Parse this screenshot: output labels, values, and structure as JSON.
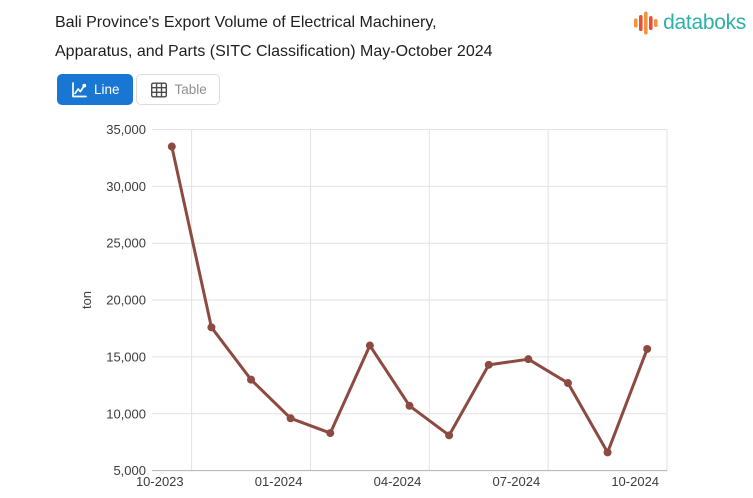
{
  "header": {
    "title_line1": "Bali Province's Export Volume of Electrical Machinery,",
    "title_line2": "Apparatus, and Parts (SITC Classification) May-October 2024",
    "brand": "databoks"
  },
  "toolbar": {
    "line_button": "Line",
    "table_button": "Table"
  },
  "colors": {
    "accent_blue": "#1976d2",
    "brand_teal": "#2eafa9",
    "logo_orange": "#f6923d",
    "logo_red": "#e94f35",
    "line": "#8c4a41",
    "gridline": "#e2e2e2",
    "axis_line": "#b0b0b0",
    "tick_text": "#3c3c3c"
  },
  "chart_data": {
    "type": "line",
    "title": "Bali Province's Export Volume of Electrical Machinery, Apparatus, and Parts (SITC Classification) May-October 2024",
    "xlabel": "",
    "ylabel": "ton",
    "categories": [
      "10-2023",
      "11-2023",
      "12-2023",
      "01-2024",
      "02-2024",
      "03-2024",
      "04-2024",
      "05-2024",
      "06-2024",
      "07-2024",
      "08-2024",
      "09-2024",
      "10-2024"
    ],
    "values": [
      33500,
      17600,
      13000,
      9600,
      8300,
      16000,
      10700,
      8100,
      14300,
      14800,
      12700,
      6600,
      15700
    ],
    "x_tick_labels": [
      "10-2023",
      "01-2024",
      "04-2024",
      "07-2024",
      "10-2024"
    ],
    "y_ticks": [
      5000,
      10000,
      15000,
      20000,
      25000,
      30000,
      35000
    ],
    "ylim": [
      5000,
      35000
    ],
    "grid": true,
    "legend": "none",
    "line_color": "#8c4a41",
    "point_radius": 4
  }
}
